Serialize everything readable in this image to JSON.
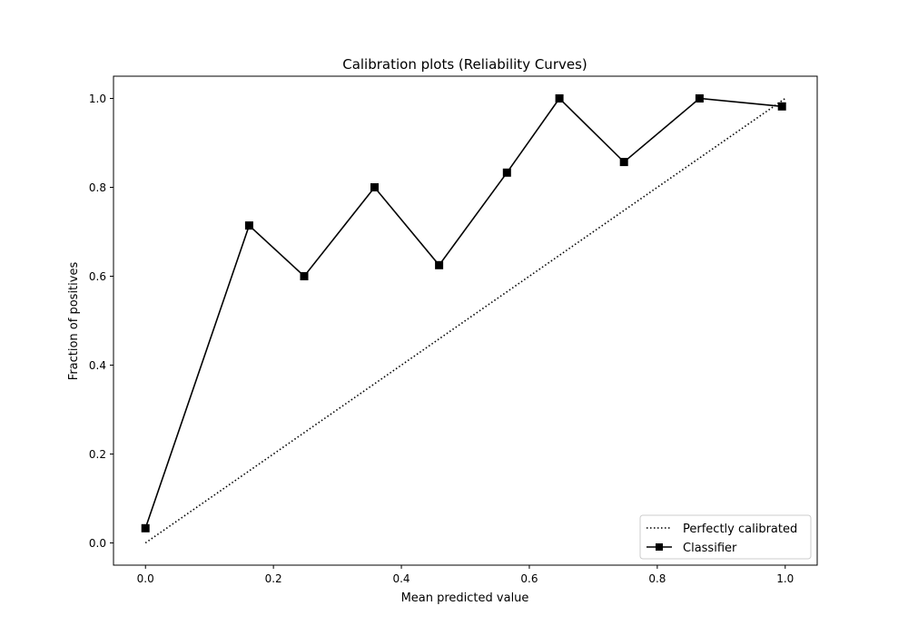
{
  "chart_data": {
    "type": "line",
    "title": "Calibration plots (Reliability Curves)",
    "xlabel": "Mean predicted value",
    "ylabel": "Fraction of positives",
    "xlim": [
      -0.05,
      1.05
    ],
    "ylim": [
      -0.05,
      1.05
    ],
    "xticks": [
      0.0,
      0.2,
      0.4,
      0.6,
      0.8,
      1.0
    ],
    "yticks": [
      0.0,
      0.2,
      0.4,
      0.6,
      0.8,
      1.0
    ],
    "tick_labels_x": [
      "0.0",
      "0.2",
      "0.4",
      "0.6",
      "0.8",
      "1.0"
    ],
    "tick_labels_y": [
      "0.0",
      "0.2",
      "0.4",
      "0.6",
      "0.8",
      "1.0"
    ],
    "grid": false,
    "legend_position": "lower-right",
    "series": [
      {
        "name": "Perfectly calibrated",
        "style": "dotted",
        "color": "#000000",
        "x": [
          0.0,
          1.0
        ],
        "y": [
          0.0,
          1.0
        ]
      },
      {
        "name": "Classifier",
        "style": "solid",
        "marker": "square",
        "color": "#000000",
        "x": [
          0.0,
          0.162,
          0.248,
          0.358,
          0.459,
          0.565,
          0.647,
          0.748,
          0.866,
          0.995
        ],
        "y": [
          0.033,
          0.714,
          0.6,
          0.8,
          0.625,
          0.833,
          1.0,
          0.857,
          1.0,
          0.982
        ]
      }
    ]
  }
}
